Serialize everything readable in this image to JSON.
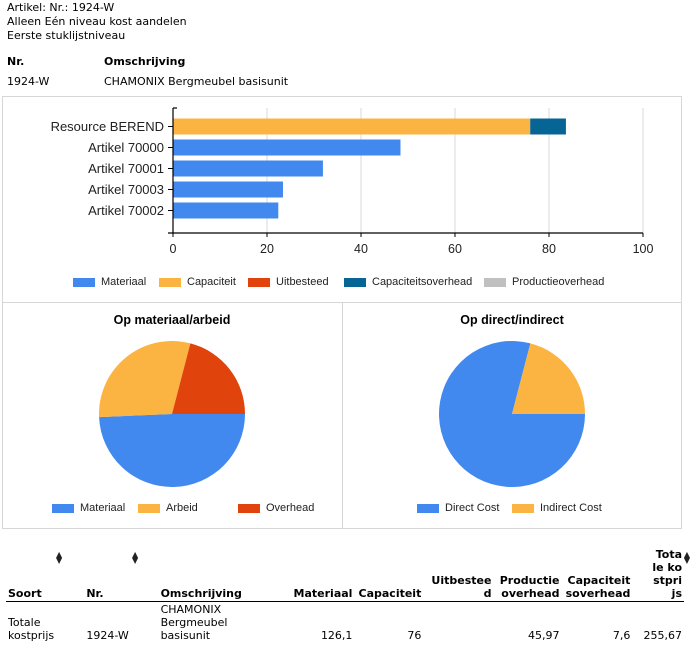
{
  "header": {
    "line1": "Artikel: Nr.: 1924-W",
    "line2": "Alleen Eén niveau kost aandelen",
    "line3": "Eerste stuklijstniveau",
    "col_nr": "Nr.",
    "col_omschrijving": "Omschrijving",
    "nr_value": "1924-W",
    "omschrijving_value": "CHAMONIX Bergmeubel basisunit"
  },
  "colors": {
    "materiaal": "#4189ef",
    "capaciteit": "#fbb442",
    "uitbesteed": "#e0440c",
    "capaciteitsoverhead": "#076595",
    "productieoverhead": "#c0c0c0",
    "grid": "#d9d9d9",
    "border": "#d6d6d6"
  },
  "chart_data": [
    {
      "type": "bar",
      "orientation": "horizontal",
      "stacked": true,
      "categories": [
        "Resource BEREND",
        "Artikel 70000",
        "Artikel 70001",
        "Artikel 70003",
        "Artikel 70002"
      ],
      "series": [
        {
          "name": "Materiaal",
          "color": "#4189ef",
          "values": [
            0,
            48.4,
            31.9,
            23.4,
            22.4
          ]
        },
        {
          "name": "Capaciteit",
          "color": "#fbb442",
          "values": [
            76,
            0,
            0,
            0,
            0
          ]
        },
        {
          "name": "Uitbesteed",
          "color": "#e0440c",
          "values": [
            0,
            0,
            0,
            0,
            0
          ]
        },
        {
          "name": "Capaciteitsoverhead",
          "color": "#076595",
          "values": [
            7.6,
            0,
            0,
            0,
            0
          ]
        },
        {
          "name": "Productieoverhead",
          "color": "#c0c0c0",
          "values": [
            0,
            0,
            0,
            0,
            0
          ]
        }
      ],
      "xlim": [
        0,
        100
      ],
      "xticks": [
        "0",
        "20",
        "40",
        "60",
        "80",
        "100"
      ],
      "xtick_values": [
        0,
        20,
        40,
        60,
        80,
        100
      ],
      "grid": true,
      "legend": "bottom",
      "title": "",
      "xlabel": "",
      "ylabel": ""
    },
    {
      "type": "pie",
      "title": "Op materiaal/arbeid",
      "labels": [
        "Materiaal",
        "Arbeid",
        "Overhead"
      ],
      "values": [
        126.1,
        76,
        53.57
      ],
      "colors": [
        "#4189ef",
        "#fbb442",
        "#e0440c"
      ],
      "legend": "bottom"
    },
    {
      "type": "pie",
      "title": "Op direct/indirect",
      "labels": [
        "Direct Cost",
        "Indirect Cost"
      ],
      "values": [
        202.1,
        53.57
      ],
      "colors": [
        "#4189ef",
        "#fbb442"
      ],
      "legend": "bottom"
    }
  ],
  "table": {
    "headers": {
      "soort": "Soort",
      "nr": "Nr.",
      "omschrijving": "Omschrijving",
      "materiaal": "Materiaal",
      "capaciteit": "Capaciteit",
      "uitbesteed": "Uitbesteed",
      "productieoverhead": "Productie overhead",
      "capaciteitsoverhead": "Capaciteit soverhead",
      "totale_kostprijs": "Totale kostprijs"
    },
    "sort_icon": "sort-updown-icon",
    "rows": [
      {
        "soort": "Totale kostprijs",
        "nr": "1924-W",
        "omschrijving": "CHAMONIX Bergmeubel basisunit",
        "materiaal": "126,1",
        "capaciteit": "76",
        "uitbesteed": "",
        "productieoverhead": "45,97",
        "capaciteitsoverhead": "7,6",
        "totale_kostprijs": "255,67"
      }
    ]
  }
}
